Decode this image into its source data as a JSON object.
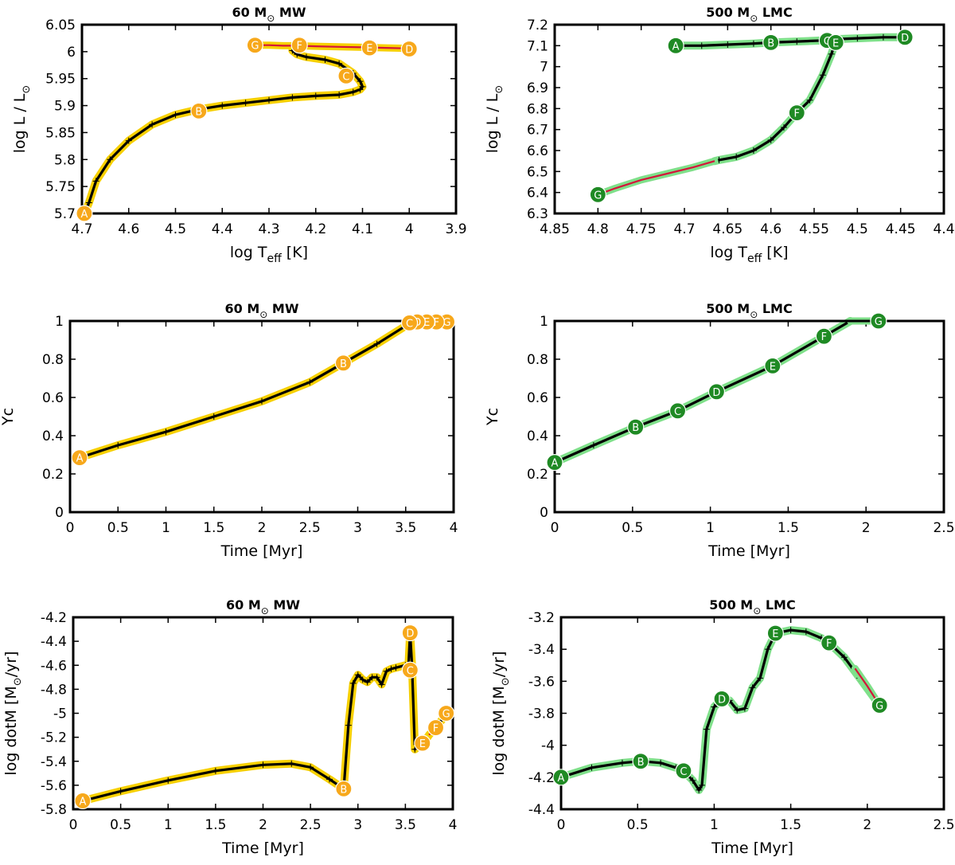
{
  "figure": {
    "colors": {
      "yellow_fill": "#f7a81b",
      "yellow_band": "#f7d000",
      "green_fill": "#1f8a24",
      "green_band": "#7fe08a",
      "red": "#d4143a",
      "track": "#000000"
    }
  },
  "chart_data": [
    {
      "id": "hrd_60_mw",
      "type": "line",
      "theme": "yellow",
      "title": {
        "mass": "60",
        "unit": "M",
        "galaxy": "MW"
      },
      "xlabel": {
        "main": "log T",
        "sub": "eff",
        "tail": " [K]"
      },
      "ylabel": {
        "main": "log L / L",
        "sun": "⊙",
        "tail": ""
      },
      "xlim": [
        4.7,
        3.9
      ],
      "ylim": [
        5.7,
        6.05
      ],
      "xticks": [
        4.7,
        4.6,
        4.5,
        4.4,
        4.3,
        4.2,
        4.1,
        4.0,
        3.9
      ],
      "xtick_labels": [
        "4.7",
        "4.6",
        "4.5",
        "4.4",
        "4.3",
        "4.2",
        "4.1",
        "4",
        "3.9"
      ],
      "yticks": [
        5.7,
        5.75,
        5.8,
        5.85,
        5.9,
        5.95,
        6.0,
        6.05
      ],
      "ytick_labels": [
        "5.7",
        "5.75",
        "5.8",
        "5.85",
        "5.9",
        "5.95",
        "6",
        "6.05"
      ],
      "series": [
        {
          "name": "track",
          "style": "main",
          "x": [
            4.695,
            4.685,
            4.67,
            4.64,
            4.6,
            4.55,
            4.5,
            4.45,
            4.4,
            4.35,
            4.3,
            4.25,
            4.2,
            4.15,
            4.12,
            4.105,
            4.1,
            4.105,
            4.12,
            4.15,
            4.18,
            4.22,
            4.24,
            4.25,
            4.245,
            4.235
          ],
          "y": [
            5.7,
            5.72,
            5.76,
            5.8,
            5.835,
            5.865,
            5.883,
            5.893,
            5.9,
            5.905,
            5.91,
            5.915,
            5.918,
            5.92,
            5.925,
            5.93,
            5.935,
            5.945,
            5.96,
            5.978,
            5.985,
            5.99,
            5.995,
            6.002,
            6.01,
            6.012
          ]
        },
        {
          "name": "late",
          "style": "red",
          "x": [
            4.33,
            4.3,
            4.27,
            4.24,
            4.2,
            4.15,
            4.1,
            4.05,
            4.0
          ],
          "y": [
            6.012,
            6.012,
            6.011,
            6.011,
            6.01,
            6.009,
            6.008,
            6.007,
            6.006
          ]
        }
      ],
      "markers": [
        {
          "label": "A",
          "x": 4.695,
          "y": 5.7
        },
        {
          "label": "B",
          "x": 4.45,
          "y": 5.89
        },
        {
          "label": "C",
          "x": 4.135,
          "y": 5.955
        },
        {
          "label": "D",
          "x": 4.0,
          "y": 6.005
        },
        {
          "label": "E",
          "x": 4.085,
          "y": 6.007
        },
        {
          "label": "F",
          "x": 4.235,
          "y": 6.012
        },
        {
          "label": "G",
          "x": 4.33,
          "y": 6.012
        }
      ]
    },
    {
      "id": "hrd_500_lmc",
      "type": "line",
      "theme": "green",
      "title": {
        "mass": "500",
        "unit": "M",
        "galaxy": "LMC"
      },
      "xlabel": {
        "main": "log T",
        "sub": "eff",
        "tail": " [K]"
      },
      "ylabel": {
        "main": "log L / L",
        "sun": "⊙",
        "tail": ""
      },
      "xlim": [
        4.85,
        4.4
      ],
      "ylim": [
        6.3,
        7.2
      ],
      "xticks": [
        4.85,
        4.8,
        4.75,
        4.7,
        4.65,
        4.6,
        4.55,
        4.5,
        4.45,
        4.4
      ],
      "xtick_labels": [
        "4.85",
        "4.8",
        "4.75",
        "4.7",
        "4.65",
        "4.6",
        "4.55",
        "4.5",
        "4.45",
        "4.4"
      ],
      "yticks": [
        6.3,
        6.4,
        6.5,
        6.6,
        6.7,
        6.8,
        6.9,
        7.0,
        7.1,
        7.2
      ],
      "ytick_labels": [
        "6.3",
        "6.4",
        "6.5",
        "6.6",
        "6.7",
        "6.8",
        "6.9",
        "7",
        "7.1",
        "7.2"
      ],
      "series": [
        {
          "name": "track",
          "style": "main",
          "x": [
            4.71,
            4.68,
            4.65,
            4.62,
            4.6,
            4.57,
            4.54,
            4.53,
            4.5,
            4.47,
            4.45
          ],
          "y": [
            7.1,
            7.1,
            7.105,
            7.11,
            7.115,
            7.12,
            7.125,
            7.13,
            7.135,
            7.14,
            7.14
          ]
        },
        {
          "name": "blueward",
          "style": "main",
          "x": [
            4.525,
            4.53,
            4.54,
            4.555,
            4.57,
            4.585,
            4.6,
            4.62,
            4.64,
            4.66,
            4.665
          ],
          "y": [
            7.12,
            7.06,
            6.96,
            6.84,
            6.78,
            6.71,
            6.65,
            6.6,
            6.57,
            6.555,
            6.55
          ]
        },
        {
          "name": "late",
          "style": "red",
          "x": [
            4.665,
            4.69,
            4.72,
            4.75,
            4.78,
            4.8
          ],
          "y": [
            6.55,
            6.52,
            6.49,
            6.46,
            6.42,
            6.39
          ]
        }
      ],
      "markers": [
        {
          "label": "A",
          "x": 4.71,
          "y": 7.1
        },
        {
          "label": "B",
          "x": 4.6,
          "y": 7.115
        },
        {
          "label": "C",
          "x": 4.535,
          "y": 7.125
        },
        {
          "label": "D",
          "x": 4.445,
          "y": 7.14
        },
        {
          "label": "E",
          "x": 4.525,
          "y": 7.115
        },
        {
          "label": "F",
          "x": 4.57,
          "y": 6.78
        },
        {
          "label": "G",
          "x": 4.8,
          "y": 6.39
        }
      ]
    },
    {
      "id": "yc_60_mw",
      "type": "line",
      "theme": "yellow",
      "title": {
        "mass": "60",
        "unit": "M",
        "galaxy": "MW"
      },
      "xlabel": {
        "main": "Time [Myr]",
        "sub": "",
        "tail": ""
      },
      "ylabel": {
        "main": "Yc",
        "sun": "",
        "tail": ""
      },
      "xlim": [
        0,
        4
      ],
      "ylim": [
        0,
        1
      ],
      "xticks": [
        0,
        0.5,
        1,
        1.5,
        2,
        2.5,
        3,
        3.5,
        4
      ],
      "xtick_labels": [
        "0",
        "0.5",
        "1",
        "1.5",
        "2",
        "2.5",
        "3",
        "3.5",
        "4"
      ],
      "yticks": [
        0,
        0.2,
        0.4,
        0.6,
        0.8,
        1.0
      ],
      "ytick_labels": [
        "0",
        "0.2",
        "0.4",
        "0.6",
        "0.8",
        "1"
      ],
      "series": [
        {
          "name": "track",
          "style": "main",
          "x": [
            0.1,
            0.5,
            1.0,
            1.5,
            2.0,
            2.5,
            2.85,
            3.2,
            3.55,
            3.95
          ],
          "y": [
            0.285,
            0.35,
            0.42,
            0.5,
            0.58,
            0.68,
            0.78,
            0.88,
            0.99,
            1.0
          ]
        }
      ],
      "markers": [
        {
          "label": "A",
          "x": 0.1,
          "y": 0.285
        },
        {
          "label": "B",
          "x": 2.85,
          "y": 0.78
        },
        {
          "label": "G",
          "x": 3.93,
          "y": 0.995
        },
        {
          "label": "F",
          "x": 3.82,
          "y": 0.995
        },
        {
          "label": "E",
          "x": 3.72,
          "y": 0.995
        },
        {
          "label": "D",
          "x": 3.62,
          "y": 0.995
        },
        {
          "label": "C",
          "x": 3.54,
          "y": 0.99
        }
      ]
    },
    {
      "id": "yc_500_lmc",
      "type": "line",
      "theme": "green",
      "title": {
        "mass": "500",
        "unit": "M",
        "galaxy": "LMC"
      },
      "xlabel": {
        "main": "Time [Myr]",
        "sub": "",
        "tail": ""
      },
      "ylabel": {
        "main": "Yc",
        "sun": "",
        "tail": ""
      },
      "xlim": [
        0,
        2.5
      ],
      "ylim": [
        0,
        1
      ],
      "xticks": [
        0,
        0.5,
        1,
        1.5,
        2,
        2.5
      ],
      "xtick_labels": [
        "0",
        "0.5",
        "1",
        "1.5",
        "2",
        "2.5"
      ],
      "yticks": [
        0,
        0.2,
        0.4,
        0.6,
        0.8,
        1.0
      ],
      "ytick_labels": [
        "0",
        "0.2",
        "0.4",
        "0.6",
        "0.8",
        "1"
      ],
      "series": [
        {
          "name": "track",
          "style": "main",
          "x": [
            0,
            0.25,
            0.52,
            0.79,
            1.04,
            1.4,
            1.73,
            1.9
          ],
          "y": [
            0.26,
            0.35,
            0.445,
            0.53,
            0.63,
            0.765,
            0.92,
            1.0
          ]
        },
        {
          "name": "late",
          "style": "red",
          "x": [
            1.9,
            2.0,
            2.08
          ],
          "y": [
            1.0,
            1.0,
            1.0
          ]
        }
      ],
      "markers": [
        {
          "label": "A",
          "x": 0.0,
          "y": 0.26
        },
        {
          "label": "B",
          "x": 0.52,
          "y": 0.445
        },
        {
          "label": "C",
          "x": 0.79,
          "y": 0.53
        },
        {
          "label": "D",
          "x": 1.04,
          "y": 0.63
        },
        {
          "label": "E",
          "x": 1.4,
          "y": 0.765
        },
        {
          "label": "F",
          "x": 1.73,
          "y": 0.92
        },
        {
          "label": "G",
          "x": 2.08,
          "y": 1.0
        }
      ]
    },
    {
      "id": "mdot_60_mw",
      "type": "line",
      "theme": "yellow",
      "title": {
        "mass": "60",
        "unit": "M",
        "galaxy": "MW"
      },
      "xlabel": {
        "main": "Time [Myr]",
        "sub": "",
        "tail": ""
      },
      "ylabel": {
        "main": "log dotM [M",
        "sun": "⊙",
        "tail": "/yr]"
      },
      "xlim": [
        0,
        4
      ],
      "ylim": [
        -5.8,
        -4.2
      ],
      "xticks": [
        0,
        0.5,
        1,
        1.5,
        2,
        2.5,
        3,
        3.5,
        4
      ],
      "xtick_labels": [
        "0",
        "0.5",
        "1",
        "1.5",
        "2",
        "2.5",
        "3",
        "3.5",
        "4"
      ],
      "yticks": [
        -5.8,
        -5.6,
        -5.4,
        -5.2,
        -5.0,
        -4.8,
        -4.6,
        -4.4,
        -4.2
      ],
      "ytick_labels": [
        "-5.8",
        "-5.6",
        "-5.4",
        "-5.2",
        "-5",
        "-4.8",
        "-4.6",
        "-4.4",
        "-4.2"
      ],
      "series": [
        {
          "name": "track",
          "style": "main",
          "x": [
            0.1,
            0.5,
            1.0,
            1.5,
            2.0,
            2.3,
            2.5,
            2.7,
            2.85,
            2.9,
            2.95,
            3.0,
            3.05,
            3.1,
            3.15,
            3.2,
            3.25,
            3.3,
            3.35,
            3.4,
            3.5,
            3.53,
            3.55,
            3.57,
            3.6
          ],
          "y": [
            -5.73,
            -5.65,
            -5.56,
            -5.48,
            -5.43,
            -5.42,
            -5.45,
            -5.55,
            -5.63,
            -5.1,
            -4.75,
            -4.68,
            -4.72,
            -4.74,
            -4.7,
            -4.7,
            -4.76,
            -4.65,
            -4.63,
            -4.62,
            -4.6,
            -4.64,
            -4.33,
            -4.6,
            -5.3
          ]
        },
        {
          "name": "tail",
          "style": "main",
          "x": [
            3.6,
            3.65,
            3.7,
            3.75,
            3.82,
            3.88,
            3.93
          ],
          "y": [
            -5.3,
            -5.27,
            -5.24,
            -5.18,
            -5.12,
            -5.06,
            -5.0
          ]
        },
        {
          "name": "late",
          "style": "red",
          "x": [
            3.75,
            3.82
          ],
          "y": [
            -5.18,
            -5.12
          ]
        }
      ],
      "markers": [
        {
          "label": "A",
          "x": 0.1,
          "y": -5.73
        },
        {
          "label": "B",
          "x": 2.85,
          "y": -5.63
        },
        {
          "label": "C",
          "x": 3.55,
          "y": -4.64
        },
        {
          "label": "D",
          "x": 3.55,
          "y": -4.33
        },
        {
          "label": "E",
          "x": 3.68,
          "y": -5.25
        },
        {
          "label": "F",
          "x": 3.82,
          "y": -5.12
        },
        {
          "label": "G",
          "x": 3.93,
          "y": -5.0
        }
      ]
    },
    {
      "id": "mdot_500_lmc",
      "type": "line",
      "theme": "green",
      "title": {
        "mass": "500",
        "unit": "M",
        "galaxy": "LMC"
      },
      "xlabel": {
        "main": "Time [Myr]",
        "sub": "",
        "tail": ""
      },
      "ylabel": {
        "main": "log dotM [M",
        "sun": "⊙",
        "tail": "/yr]"
      },
      "xlim": [
        0,
        2.5
      ],
      "ylim": [
        -4.4,
        -3.2
      ],
      "xticks": [
        0,
        0.5,
        1,
        1.5,
        2,
        2.5
      ],
      "xtick_labels": [
        "0",
        "0.5",
        "1",
        "1.5",
        "2",
        "2.5"
      ],
      "yticks": [
        -4.4,
        -4.2,
        -4.0,
        -3.8,
        -3.6,
        -3.4,
        -3.2
      ],
      "ytick_labels": [
        "-4.4",
        "-4.2",
        "-4",
        "-3.8",
        "-3.6",
        "-3.4",
        "-3.2"
      ],
      "series": [
        {
          "name": "track",
          "style": "main",
          "x": [
            0,
            0.2,
            0.4,
            0.52,
            0.65,
            0.75,
            0.8,
            0.86,
            0.9,
            0.92,
            0.95,
            1.0,
            1.05,
            1.1,
            1.15,
            1.2,
            1.25,
            1.3,
            1.35,
            1.4,
            1.5,
            1.6,
            1.7,
            1.75,
            1.85,
            1.95,
            2.08
          ],
          "y": [
            -4.2,
            -4.14,
            -4.11,
            -4.1,
            -4.11,
            -4.14,
            -4.16,
            -4.22,
            -4.28,
            -4.25,
            -3.9,
            -3.76,
            -3.71,
            -3.72,
            -3.78,
            -3.77,
            -3.64,
            -3.58,
            -3.4,
            -3.3,
            -3.28,
            -3.29,
            -3.33,
            -3.36,
            -3.45,
            -3.58,
            -3.75
          ]
        },
        {
          "name": "late",
          "style": "red",
          "x": [
            1.92,
            2.0,
            2.08
          ],
          "y": [
            -3.52,
            -3.63,
            -3.75
          ]
        }
      ],
      "markers": [
        {
          "label": "A",
          "x": 0.0,
          "y": -4.2
        },
        {
          "label": "B",
          "x": 0.52,
          "y": -4.1
        },
        {
          "label": "C",
          "x": 0.8,
          "y": -4.16
        },
        {
          "label": "D",
          "x": 1.05,
          "y": -3.71
        },
        {
          "label": "E",
          "x": 1.4,
          "y": -3.3
        },
        {
          "label": "F",
          "x": 1.75,
          "y": -3.36
        },
        {
          "label": "G",
          "x": 2.08,
          "y": -3.75
        }
      ]
    }
  ]
}
